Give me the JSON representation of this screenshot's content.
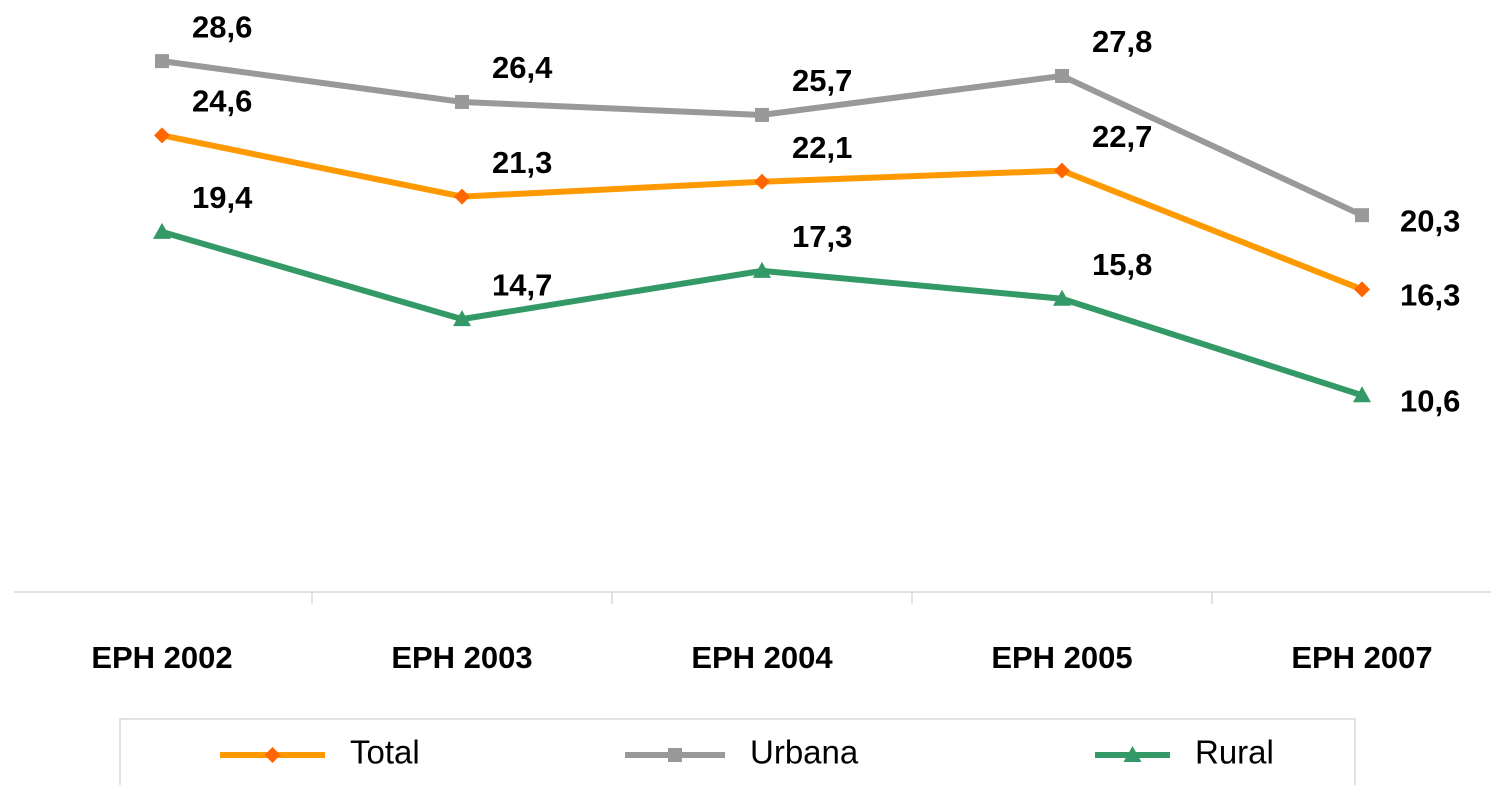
{
  "chart_data": {
    "type": "line",
    "categories": [
      "EPH 2002",
      "EPH 2003",
      "EPH 2004",
      "EPH 2005",
      "EPH 2007"
    ],
    "series": [
      {
        "name": "Total",
        "color": "#ff9900",
        "marker": "diamond",
        "values": [
          24.6,
          21.3,
          22.1,
          22.7,
          16.3
        ],
        "value_labels": [
          "24,6",
          "21,3",
          "22,1",
          "22,7",
          "16,3"
        ]
      },
      {
        "name": "Urbana",
        "color": "#999999",
        "marker": "square",
        "values": [
          28.6,
          26.4,
          25.7,
          27.8,
          20.3
        ],
        "value_labels": [
          "28,6",
          "26,4",
          "25,7",
          "27,8",
          "20,3"
        ]
      },
      {
        "name": "Rural",
        "color": "#339966",
        "marker": "triangle",
        "values": [
          19.4,
          14.7,
          17.3,
          15.8,
          10.6
        ],
        "value_labels": [
          "19,4",
          "14,7",
          "17,3",
          "15,8",
          "10,6"
        ]
      }
    ],
    "ylim": [
      0,
      32
    ]
  }
}
